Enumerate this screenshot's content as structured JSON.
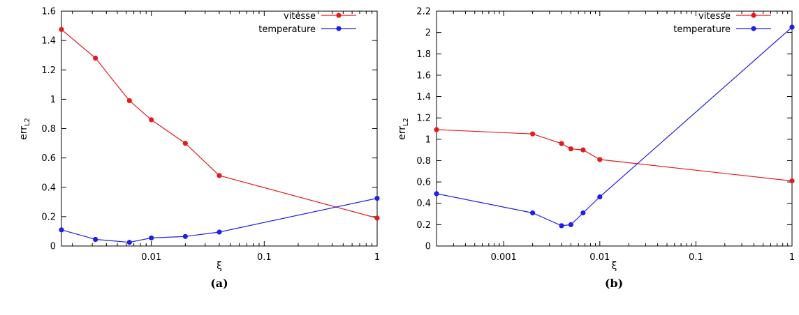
{
  "chart_data": [
    {
      "type": "line",
      "caption": "(a)",
      "xlabel": "ξ",
      "ylabel": {
        "main": "err",
        "sub": "L2"
      },
      "xscale": "log",
      "xlim": [
        0.0016,
        1
      ],
      "ylim": [
        0,
        1.6
      ],
      "grid": false,
      "legend": "top-right",
      "xticks": [
        {
          "value": 0.01,
          "label": "0.01"
        },
        {
          "value": 0.1,
          "label": "0.1"
        },
        {
          "value": 1,
          "label": "1"
        }
      ],
      "yticks": [
        {
          "value": 0,
          "label": "0"
        },
        {
          "value": 0.2,
          "label": "0.2"
        },
        {
          "value": 0.4,
          "label": "0.4"
        },
        {
          "value": 0.6,
          "label": "0.6"
        },
        {
          "value": 0.8,
          "label": "0.8"
        },
        {
          "value": 1,
          "label": "1"
        },
        {
          "value": 1.2,
          "label": "1.2"
        },
        {
          "value": 1.4,
          "label": "1.4"
        },
        {
          "value": 1.6,
          "label": "1.6"
        }
      ],
      "series": [
        {
          "name": "vitesse",
          "color": "#e41a1c",
          "x": [
            0.0016,
            0.0032,
            0.0064,
            0.01,
            0.02,
            0.04,
            1
          ],
          "y": [
            1.475,
            1.28,
            0.99,
            0.86,
            0.7,
            0.48,
            0.19
          ]
        },
        {
          "name": "temperature",
          "color": "#1f1fe6",
          "x": [
            0.0016,
            0.0032,
            0.0064,
            0.01,
            0.02,
            0.04,
            1
          ],
          "y": [
            0.11,
            0.045,
            0.025,
            0.055,
            0.065,
            0.095,
            0.325
          ]
        }
      ]
    },
    {
      "type": "line",
      "caption": "(b)",
      "xlabel": "ξ",
      "ylabel": {
        "main": "err",
        "sub": "L2"
      },
      "xscale": "log",
      "xlim": [
        0.0002,
        1
      ],
      "ylim": [
        0,
        2.2
      ],
      "grid": false,
      "legend": "top-right",
      "xticks": [
        {
          "value": 0.001,
          "label": "0.001"
        },
        {
          "value": 0.01,
          "label": "0.01"
        },
        {
          "value": 0.1,
          "label": "0.1"
        },
        {
          "value": 1,
          "label": "1"
        }
      ],
      "yticks": [
        {
          "value": 0,
          "label": "0"
        },
        {
          "value": 0.2,
          "label": "0.2"
        },
        {
          "value": 0.4,
          "label": "0.4"
        },
        {
          "value": 0.6,
          "label": "0.6"
        },
        {
          "value": 0.8,
          "label": "0.8"
        },
        {
          "value": 1,
          "label": "1"
        },
        {
          "value": 1.2,
          "label": "1.2"
        },
        {
          "value": 1.4,
          "label": "1.4"
        },
        {
          "value": 1.6,
          "label": "1.6"
        },
        {
          "value": 1.8,
          "label": "1.8"
        },
        {
          "value": 2,
          "label": "2"
        },
        {
          "value": 2.2,
          "label": "2.2"
        }
      ],
      "series": [
        {
          "name": "vitesse",
          "color": "#e41a1c",
          "x": [
            0.0002,
            0.002,
            0.004,
            0.005,
            0.0067,
            0.01,
            1
          ],
          "y": [
            1.09,
            1.05,
            0.96,
            0.91,
            0.9,
            0.81,
            0.61
          ]
        },
        {
          "name": "temperature",
          "color": "#1f1fe6",
          "x": [
            0.0002,
            0.002,
            0.004,
            0.005,
            0.0067,
            0.01,
            1
          ],
          "y": [
            0.49,
            0.31,
            0.19,
            0.2,
            0.31,
            0.46,
            2.05
          ]
        }
      ]
    }
  ]
}
